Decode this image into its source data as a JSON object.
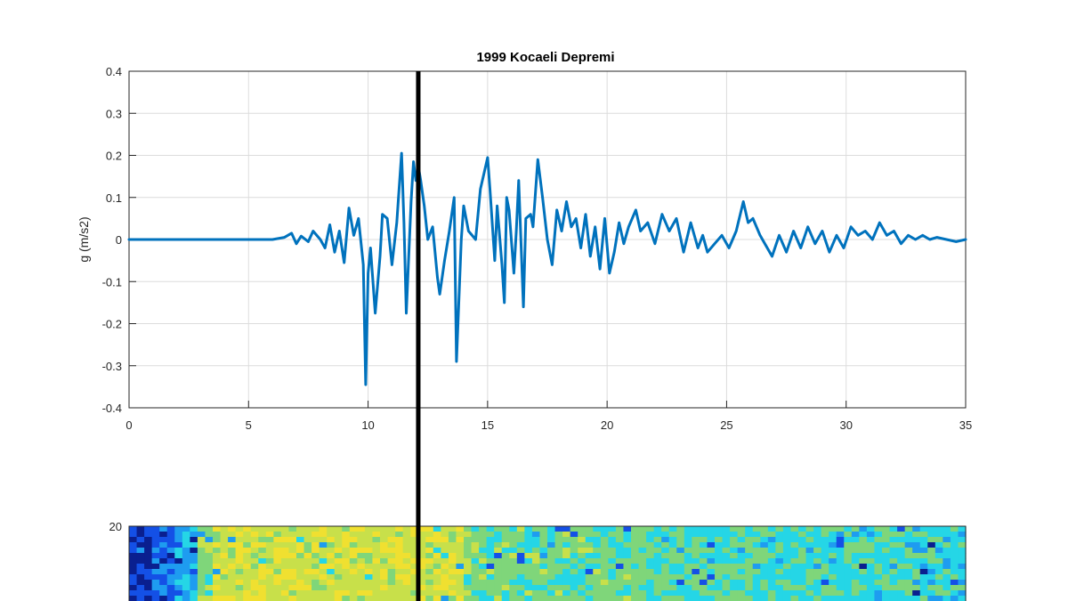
{
  "chart_data": [
    {
      "type": "line",
      "title": "1999 Kocaeli Depremi",
      "xlabel": "",
      "ylabel": "g (m/s2)",
      "xlim": [
        0,
        35
      ],
      "ylim": [
        -0.4,
        0.4
      ],
      "grid": true,
      "xticks": [
        "0",
        "5",
        "10",
        "15",
        "20",
        "25",
        "30",
        "35"
      ],
      "xtick_values": [
        0,
        5,
        10,
        15,
        20,
        25,
        30,
        35
      ],
      "yticks": [
        "0.4",
        "0.3",
        "0.2",
        "0.1",
        "0",
        "-0.1",
        "-0.2",
        "-0.3",
        "-0.4"
      ],
      "ytick_values": [
        0.4,
        0.3,
        0.2,
        0.1,
        0,
        -0.1,
        -0.2,
        -0.3,
        -0.4
      ],
      "series": [
        {
          "color": "#0072bd",
          "x": [
            0,
            6.0,
            6.5,
            6.8,
            7.0,
            7.2,
            7.5,
            7.7,
            8.0,
            8.2,
            8.4,
            8.6,
            8.8,
            9.0,
            9.2,
            9.4,
            9.6,
            9.8,
            9.9,
            10.0,
            10.1,
            10.3,
            10.5,
            10.6,
            10.8,
            11.0,
            11.2,
            11.4,
            11.5,
            11.6,
            11.8,
            11.9,
            12.0,
            12.1,
            12.2,
            12.35,
            12.5,
            12.7,
            12.9,
            13.0,
            13.2,
            13.4,
            13.6,
            13.7,
            13.9,
            14.0,
            14.2,
            14.5,
            14.7,
            14.9,
            15.0,
            15.1,
            15.3,
            15.4,
            15.6,
            15.7,
            15.8,
            15.9,
            16.1,
            16.2,
            16.3,
            16.5,
            16.6,
            16.8,
            16.9,
            17.1,
            17.3,
            17.5,
            17.7,
            17.9,
            18.1,
            18.3,
            18.5,
            18.7,
            18.9,
            19.1,
            19.3,
            19.5,
            19.7,
            19.9,
            20.1,
            20.3,
            20.5,
            20.7,
            20.9,
            21.2,
            21.4,
            21.7,
            22.0,
            22.3,
            22.6,
            22.9,
            23.2,
            23.5,
            23.8,
            24.0,
            24.2,
            24.5,
            24.8,
            25.1,
            25.4,
            25.7,
            25.9,
            26.1,
            26.4,
            26.6,
            26.9,
            27.2,
            27.5,
            27.8,
            28.1,
            28.4,
            28.7,
            29.0,
            29.3,
            29.6,
            29.9,
            30.2,
            30.5,
            30.8,
            31.1,
            31.4,
            31.7,
            32.0,
            32.3,
            32.6,
            32.9,
            33.2,
            33.5,
            33.8,
            34.2,
            34.6,
            35.0
          ],
          "y": [
            0.0,
            0.0,
            0.005,
            0.015,
            -0.01,
            0.008,
            -0.005,
            0.02,
            0.0,
            -0.02,
            0.035,
            -0.03,
            0.02,
            -0.055,
            0.075,
            0.01,
            0.05,
            -0.06,
            -0.345,
            -0.08,
            -0.02,
            -0.175,
            -0.04,
            0.06,
            0.05,
            -0.06,
            0.04,
            0.205,
            0.04,
            -0.175,
            0.09,
            0.185,
            0.14,
            0.175,
            0.14,
            0.08,
            0.0,
            0.03,
            -0.09,
            -0.13,
            -0.05,
            0.02,
            0.1,
            -0.29,
            0.0,
            0.08,
            0.02,
            0.0,
            0.12,
            0.17,
            0.195,
            0.12,
            -0.05,
            0.08,
            -0.06,
            -0.15,
            0.1,
            0.07,
            -0.08,
            0.02,
            0.14,
            -0.16,
            0.05,
            0.06,
            0.03,
            0.19,
            0.1,
            0.0,
            -0.06,
            0.07,
            0.02,
            0.09,
            0.03,
            0.05,
            -0.02,
            0.06,
            -0.04,
            0.03,
            -0.07,
            0.05,
            -0.08,
            -0.03,
            0.04,
            -0.01,
            0.03,
            0.07,
            0.02,
            0.04,
            -0.01,
            0.06,
            0.02,
            0.05,
            -0.03,
            0.04,
            -0.02,
            0.01,
            -0.03,
            -0.01,
            0.01,
            -0.02,
            0.02,
            0.09,
            0.04,
            0.05,
            0.01,
            -0.01,
            -0.04,
            0.01,
            -0.03,
            0.02,
            -0.02,
            0.03,
            -0.01,
            0.02,
            -0.03,
            0.01,
            -0.02,
            0.03,
            0.01,
            0.02,
            0.0,
            0.04,
            0.01,
            0.02,
            -0.01,
            0.01,
            0.0,
            0.01,
            0.0,
            0.005,
            0.0,
            -0.005,
            0.0
          ]
        }
      ],
      "marker_x": 12.1,
      "marker_color": "#000000"
    },
    {
      "type": "heatmap",
      "yticks": [
        "20"
      ],
      "ytick_values": [
        20
      ],
      "xlim": [
        0,
        35
      ],
      "colormap": [
        "#0a1f8f",
        "#1450e6",
        "#1e9cf0",
        "#25d6e6",
        "#7fd67a",
        "#c8e04a",
        "#f0e030"
      ],
      "low_region_x": [
        0,
        2.8
      ],
      "high_region_x": [
        3.5,
        14.0
      ]
    }
  ]
}
